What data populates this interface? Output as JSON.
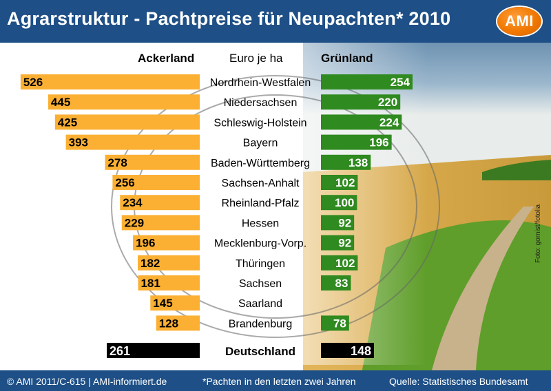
{
  "header": {
    "title": "Agrarstruktur - Pachtpreise für Neupachten* 2010",
    "logo": "AMI"
  },
  "columns": {
    "left": "Ackerland",
    "middle": "Euro je ha",
    "right": "Grünland"
  },
  "chart_data": {
    "type": "bar",
    "layout": "butterfly",
    "unit": "Euro je ha",
    "categories": [
      "Nordrhein-Westfalen",
      "Niedersachsen",
      "Schleswig-Holstein",
      "Bayern",
      "Baden-Württemberg",
      "Sachsen-Anhalt",
      "Rheinland-Pfalz",
      "Hessen",
      "Mecklenburg-Vorp.",
      "Thüringen",
      "Sachsen",
      "Saarland",
      "Brandenburg"
    ],
    "series": [
      {
        "name": "Ackerland",
        "values": [
          526,
          445,
          425,
          393,
          278,
          256,
          234,
          229,
          196,
          182,
          181,
          145,
          128
        ]
      },
      {
        "name": "Grünland",
        "values": [
          254,
          220,
          224,
          196,
          138,
          102,
          100,
          92,
          92,
          102,
          83,
          0,
          78
        ]
      }
    ],
    "total": {
      "label": "Deutschland",
      "Ackerland": 261,
      "Grünland": 148
    },
    "colors": {
      "Ackerland": "#fbb033",
      "Grünland": "#2f8a1f",
      "total": "#000000"
    },
    "ackerland_scale_max": 552
  },
  "footer": {
    "copyright": "© AMI 2011/C-615 | AMI-informiert.de",
    "note": "*Pachten in den letzten zwei Jahren",
    "source": "Quelle: Statistisches Bundesamt"
  },
  "photo_credit": "Foto: gornist/fotolia",
  "colors": {
    "header_bg": "#1e4f86",
    "footer_bg": "#1e4f86",
    "brand_orange": "#f07800"
  }
}
